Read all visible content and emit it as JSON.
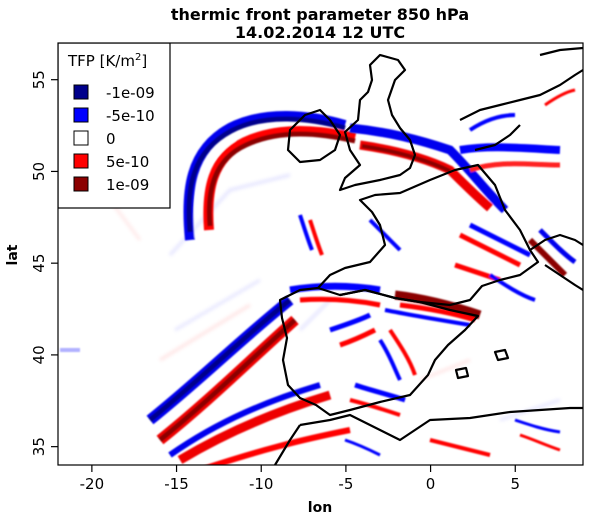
{
  "chart": {
    "title_line1": "thermic front parameter 850 hPa",
    "title_line2": "14.02.2014 12 UTC",
    "xlabel": "lon",
    "ylabel": "lat",
    "x_ticks": [
      "-20",
      "-15",
      "-10",
      "-5",
      "0",
      "5"
    ],
    "y_ticks": [
      "35",
      "40",
      "45",
      "50",
      "55"
    ]
  },
  "legend": {
    "title_prefix": "TFP [K/m",
    "title_sup": "2",
    "title_suffix": "]",
    "position": "top-left",
    "entries": [
      {
        "label": "-1e-09",
        "color": "#00008b"
      },
      {
        "label": "-5e-10",
        "color": "#0000ff"
      },
      {
        "label": "0",
        "color": "#ffffff"
      },
      {
        "label": "5e-10",
        "color": "#ff0000"
      },
      {
        "label": "1e-09",
        "color": "#8b0000"
      }
    ]
  },
  "chart_data": {
    "type": "heatmap",
    "title": "thermic front parameter 850 hPa 14.02.2014 12 UTC",
    "xlabel": "lon",
    "ylabel": "lat",
    "xlim": [
      -22,
      9
    ],
    "ylim": [
      34,
      57
    ],
    "x_ticks": [
      -20,
      -15,
      -10,
      -5,
      0,
      5
    ],
    "y_ticks": [
      35,
      40,
      45,
      50,
      55
    ],
    "colorbar_values": [
      -1e-09,
      -5e-10,
      0,
      5e-10,
      1e-09
    ],
    "colors": [
      "#00008b",
      "#0000ff",
      "#ffffff",
      "#ff0000",
      "#8b0000"
    ]
  }
}
